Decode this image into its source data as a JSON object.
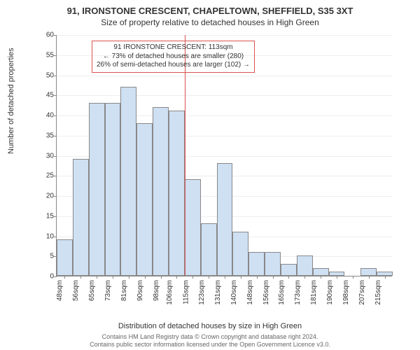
{
  "title": "91, IRONSTONE CRESCENT, CHAPELTOWN, SHEFFIELD, S35 3XT",
  "subtitle": "Size of property relative to detached houses in High Green",
  "chart": {
    "type": "histogram",
    "ylabel": "Number of detached properties",
    "xlabel": "Distribution of detached houses by size in High Green",
    "ylim": [
      0,
      60
    ],
    "ytick_step": 5,
    "bar_fill": "#cfe0f3",
    "bar_border": "#888888",
    "grid_color": "#eeeeee",
    "background_color": "#ffffff",
    "label_fontsize": 11,
    "tick_fontsize": 10,
    "x_ticks": [
      "48sqm",
      "56sqm",
      "65sqm",
      "73sqm",
      "81sqm",
      "90sqm",
      "98sqm",
      "106sqm",
      "115sqm",
      "123sqm",
      "131sqm",
      "140sqm",
      "148sqm",
      "156sqm",
      "165sqm",
      "173sqm",
      "181sqm",
      "190sqm",
      "198sqm",
      "207sqm",
      "215sqm"
    ],
    "values": [
      9,
      29,
      43,
      43,
      47,
      38,
      42,
      41,
      24,
      13,
      28,
      11,
      6,
      6,
      3,
      5,
      2,
      1,
      0,
      2,
      1
    ],
    "reference_line": {
      "index": 8,
      "color": "#d9534f"
    },
    "annotation": {
      "lines": [
        "91 IRONSTONE CRESCENT: 113sqm",
        "← 73% of detached houses are smaller (280)",
        "26% of semi-detached houses are larger (102) →"
      ],
      "border_color": "#d9534f",
      "text_color": "#333333"
    }
  },
  "footer_line1": "Contains HM Land Registry data © Crown copyright and database right 2024.",
  "footer_line2": "Contains public sector information licensed under the Open Government Licence v3.0."
}
